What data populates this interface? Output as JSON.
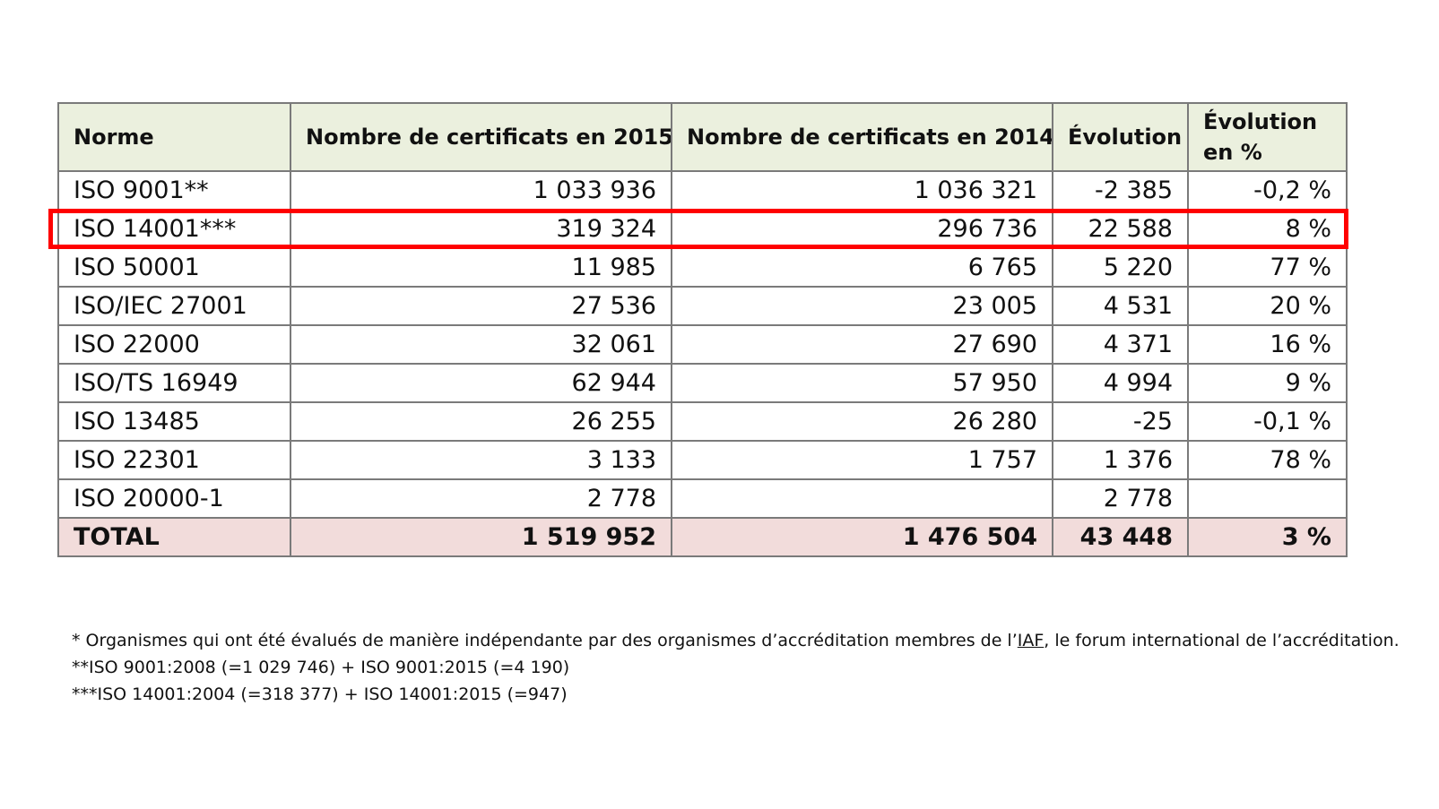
{
  "table": {
    "headers": {
      "norme": "Norme",
      "n2015": "Nombre de certificats en 2015",
      "n2014": "Nombre de certificats en 2014",
      "evolution": "Évolution",
      "evolution_pct": "Évolution en %"
    },
    "rows": [
      {
        "norme": "ISO 9001**",
        "n2015": "1 033 936",
        "n2014": "1 036 321",
        "evolution": "-2 385",
        "evolution_pct": "-0,2 %"
      },
      {
        "norme": "ISO 14001***",
        "n2015": "319 324",
        "n2014": "296 736",
        "evolution": "22 588",
        "evolution_pct": "8 %"
      },
      {
        "norme": "ISO 50001",
        "n2015": "11 985",
        "n2014": "6 765",
        "evolution": "5 220",
        "evolution_pct": "77 %"
      },
      {
        "norme": "ISO/IEC 27001",
        "n2015": "27 536",
        "n2014": "23 005",
        "evolution": "4 531",
        "evolution_pct": "20 %"
      },
      {
        "norme": "ISO 22000",
        "n2015": "32 061",
        "n2014": "27 690",
        "evolution": "4 371",
        "evolution_pct": "16 %"
      },
      {
        "norme": "ISO/TS 16949",
        "n2015": "62 944",
        "n2014": "57 950",
        "evolution": "4 994",
        "evolution_pct": "9 %"
      },
      {
        "norme": "ISO 13485",
        "n2015": "26 255",
        "n2014": "26 280",
        "evolution": "-25",
        "evolution_pct": "-0,1 %"
      },
      {
        "norme": "ISO 22301",
        "n2015": "3 133",
        "n2014": "1 757",
        "evolution": "1 376",
        "evolution_pct": "78 %"
      },
      {
        "norme": "ISO 20000-1",
        "n2015": "2 778",
        "n2014": "",
        "evolution": "2 778",
        "evolution_pct": ""
      }
    ],
    "total": {
      "norme": "TOTAL",
      "n2015": "1 519 952",
      "n2014": "1 476 504",
      "evolution": "43 448",
      "evolution_pct": "3 %"
    },
    "highlighted_row": "ISO 14001***",
    "colors": {
      "header_bg": "#ebf0de",
      "total_bg": "#f2dcdb",
      "highlight_border": "#ff0000",
      "grid": "#7a7a7a"
    }
  },
  "footnotes": {
    "note1_before": "* Organismes qui ont été évalués de manière indépendante par des organismes d’accréditation membres de l’",
    "note1_link": "IAF",
    "note1_after": ", le forum international de l’accréditation.",
    "note2": "**ISO 9001:2008 (=1 029 746) + ISO 9001:2015 (=4 190)",
    "note3": "***ISO 14001:2004 (=318 377) + ISO 14001:2015 (=947)"
  }
}
